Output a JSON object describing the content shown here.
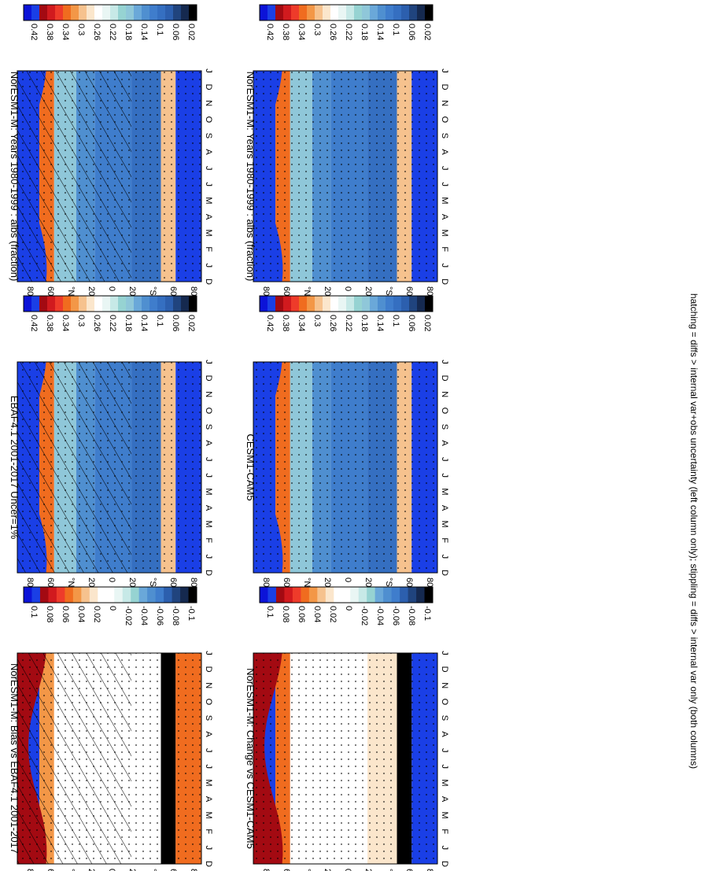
{
  "figure": {
    "footnote": "hatching = diffs > internal var+obs uncertainty (left column only); stippling = diffs > internal var only (both columns)"
  },
  "colorbars": {
    "abs": {
      "labels": [
        "0.42",
        "0.38",
        "0.34",
        "0.3",
        "0.26",
        "0.22",
        "0.18",
        "0.14",
        "0.1",
        "0.06",
        "0.02"
      ],
      "colors": [
        "#0c13d8",
        "#1a3fe6",
        "#a30a12",
        "#d11a1e",
        "#ee3b2a",
        "#f06c1f",
        "#f39747",
        "#f6c28e",
        "#fbe6cc",
        "#ffffff",
        "#e9f6f4",
        "#c7e9e7",
        "#96d3d2",
        "#8fc7d9",
        "#6aa8d9",
        "#4f8fd0",
        "#3f7dcc",
        "#356fc1",
        "#2c5fae",
        "#20447e",
        "#15294f",
        "#000000"
      ]
    },
    "diff": {
      "labels": [
        "0.1",
        "0.08",
        "0.06",
        "0.04",
        "0.02",
        "0",
        "-0.02",
        "-0.04",
        "-0.06",
        "-0.08",
        "-0.1"
      ],
      "colors": [
        "#0c13d8",
        "#1a3fe6",
        "#a30a12",
        "#d11a1e",
        "#ee3b2a",
        "#f06c1f",
        "#f39747",
        "#f6c28e",
        "#fbe6cc",
        "#ffffff",
        "#ffffff",
        "#e9f6f4",
        "#c7e9e7",
        "#96d3d2",
        "#6aa8d9",
        "#4f8fd0",
        "#3f7dcc",
        "#2c5fae",
        "#20447e",
        "#15294f",
        "#000000"
      ]
    }
  },
  "axes": {
    "months": [
      "D",
      "J",
      "F",
      "M",
      "A",
      "M",
      "J",
      "J",
      "A",
      "S",
      "O",
      "N",
      "D",
      "J"
    ],
    "lat_labels": [
      "80",
      "60",
      "°N",
      "20",
      "0",
      "20",
      "°S",
      "60",
      "80"
    ]
  },
  "chart_data": [
    {
      "type": "heatmap",
      "title": "NorESM1-M: Years 1980-1999 : albs (fraction)",
      "colorbar": "abs",
      "hatching": true,
      "stippling": true,
      "x": [
        "D",
        "J",
        "F",
        "M",
        "A",
        "M",
        "J",
        "J",
        "A",
        "S",
        "O",
        "N",
        "D",
        "J"
      ],
      "y_lat": [
        90,
        60,
        30,
        0,
        -30,
        -60,
        -90
      ],
      "values_by_lat_band": {
        "north_polar": 0.44,
        "north_60": 0.34,
        "north_mid": 0.18,
        "north_20": 0.14,
        "tropics": 0.1,
        "south_mid": 0.08,
        "south_60": 0.3,
        "south_polar": 0.44
      }
    },
    {
      "type": "heatmap",
      "title": "NorESM1-M: Years 1980-1999 : albs (fraction)",
      "colorbar": "abs",
      "hatching": false,
      "stippling": true,
      "x": [
        "D",
        "J",
        "F",
        "M",
        "A",
        "M",
        "J",
        "J",
        "A",
        "S",
        "O",
        "N",
        "D",
        "J"
      ],
      "y_lat": [
        90,
        60,
        30,
        0,
        -30,
        -60,
        -90
      ],
      "values_by_lat_band": {
        "north_polar": 0.44,
        "north_60": 0.34,
        "north_mid": 0.18,
        "north_20": 0.14,
        "tropics": 0.1,
        "south_mid": 0.08,
        "south_60": 0.3,
        "south_polar": 0.44
      }
    },
    {
      "type": "heatmap",
      "title": "EBAF4.1 2001-2017 Uncer=1%",
      "colorbar": "abs",
      "hatching": true,
      "stippling": true,
      "x": [
        "D",
        "J",
        "F",
        "M",
        "A",
        "M",
        "J",
        "J",
        "A",
        "S",
        "O",
        "N",
        "D",
        "J"
      ],
      "y_lat": [
        90,
        60,
        30,
        0,
        -30,
        -60,
        -90
      ],
      "values_by_lat_band": {
        "north_polar": 0.44,
        "north_60": 0.34,
        "north_mid": 0.18,
        "north_20": 0.14,
        "tropics": 0.1,
        "south_mid": 0.08,
        "south_60": 0.3,
        "south_polar": 0.44
      }
    },
    {
      "type": "heatmap",
      "title": "CESM1-CAM5",
      "colorbar": "abs",
      "hatching": false,
      "stippling": true,
      "x": [
        "D",
        "J",
        "F",
        "M",
        "A",
        "M",
        "J",
        "J",
        "A",
        "S",
        "O",
        "N",
        "D",
        "J"
      ],
      "y_lat": [
        90,
        60,
        30,
        0,
        -30,
        -60,
        -90
      ],
      "values_by_lat_band": {
        "north_polar": 0.44,
        "north_60": 0.34,
        "north_mid": 0.18,
        "north_20": 0.14,
        "tropics": 0.1,
        "south_mid": 0.08,
        "south_60": 0.3,
        "south_polar": 0.44
      }
    },
    {
      "type": "heatmap",
      "title": "NorESM1-M: Bias vs EBAF4.1 2001-2017",
      "colorbar": "diff",
      "hatching": true,
      "stippling": true,
      "x": [
        "D",
        "J",
        "F",
        "M",
        "A",
        "M",
        "J",
        "J",
        "A",
        "S",
        "O",
        "N",
        "D",
        "J"
      ],
      "y_lat": [
        90,
        60,
        30,
        0,
        -30,
        -60,
        -90
      ],
      "values_by_lat_band": {
        "north_polar": 0.1,
        "north_60": 0.05,
        "north_mid": 0.02,
        "north_20": 0.01,
        "tropics": 0.01,
        "south_mid": 0.02,
        "south_60": -0.1,
        "south_polar": 0.06
      }
    },
    {
      "type": "heatmap",
      "title": "NorESM1-M: Change vs CESM1-CAM5",
      "colorbar": "diff",
      "hatching": false,
      "stippling": true,
      "x": [
        "D",
        "J",
        "F",
        "M",
        "A",
        "M",
        "J",
        "J",
        "A",
        "S",
        "O",
        "N",
        "D",
        "J"
      ],
      "y_lat": [
        90,
        60,
        30,
        0,
        -30,
        -60,
        -90
      ],
      "values_by_lat_band": {
        "north_polar": 0.1,
        "north_60": 0.06,
        "north_mid": 0.01,
        "north_20": 0.01,
        "tropics": 0.02,
        "south_mid": 0.03,
        "south_60": -0.1,
        "south_polar": 0.1
      }
    }
  ]
}
